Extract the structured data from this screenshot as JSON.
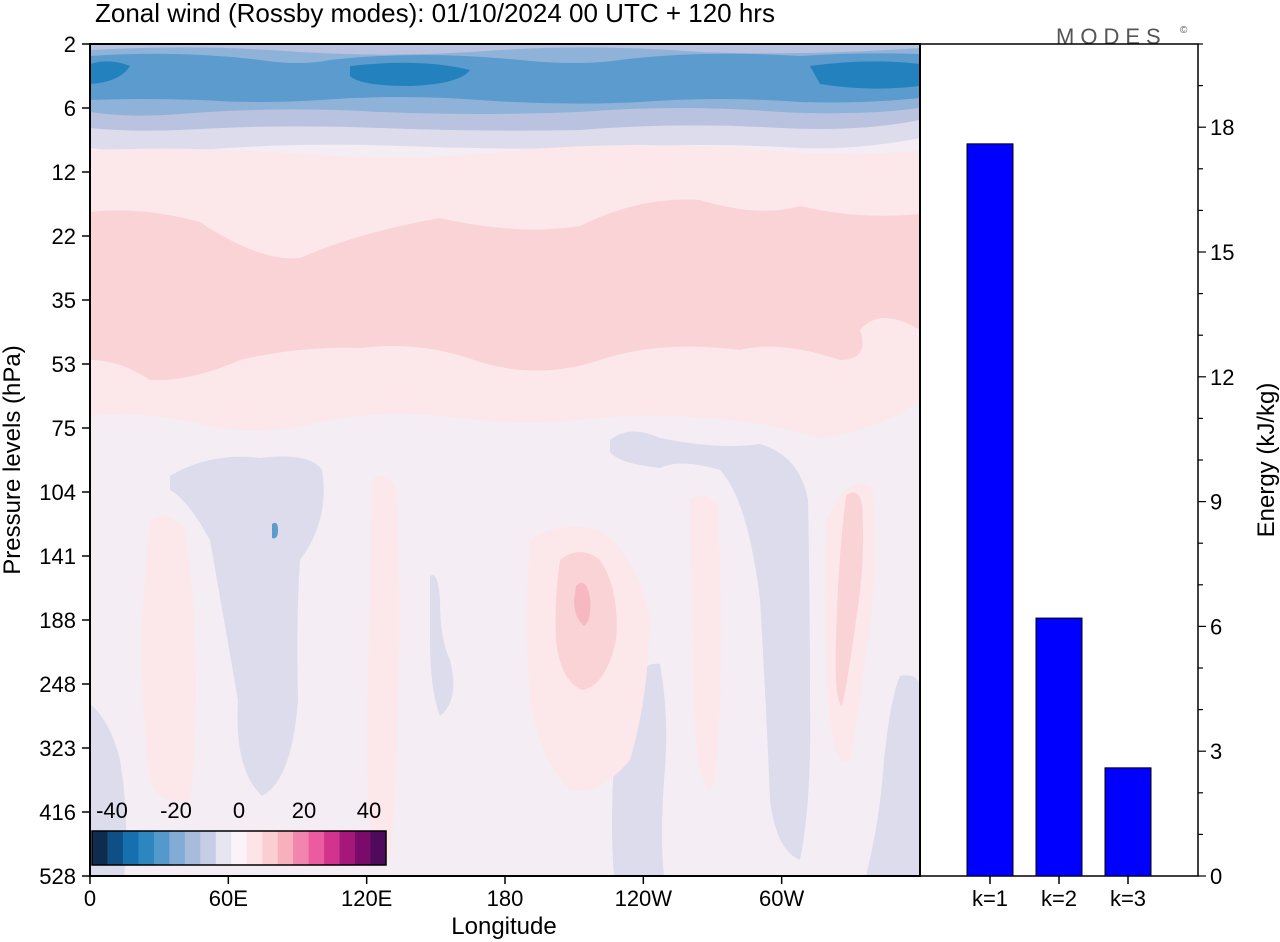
{
  "title": "Zonal wind (Rossby modes):  01/10/2024  00 UTC  + 120 hrs",
  "logo": "MODES",
  "logo_mark": "©",
  "contour_panel": {
    "xlabel": "Longitude",
    "ylabel": "Pressure levels (hPa)",
    "x_ticks": [
      "0",
      "60E",
      "120E",
      "180",
      "120W",
      "60W"
    ],
    "y_ticks": [
      "2",
      "6",
      "12",
      "22",
      "35",
      "53",
      "75",
      "104",
      "141",
      "188",
      "248",
      "323",
      "416",
      "528"
    ],
    "colorbar": {
      "tick_labels": [
        "-40",
        "-20",
        "0",
        "20",
        "40"
      ],
      "colors": [
        "#0d2c4e",
        "#0e4f86",
        "#1670b0",
        "#2d86c0",
        "#5598cc",
        "#82acd6",
        "#a7bcdd",
        "#c6cde6",
        "#e6e6f1",
        "#fbf3f7",
        "#fde4e6",
        "#fbcfd2",
        "#f8b0bd",
        "#f384ad",
        "#ec5aa0",
        "#d2348d",
        "#a5187a",
        "#7a0b6c",
        "#4f0a5c"
      ]
    },
    "field_colors": {
      "neg_strong": "#2382bd",
      "neg_mid": "#5c9bcd",
      "neg_light": "#8fb3d8",
      "neg_pale": "#b9c3df",
      "neg_faint": "#dcdcec",
      "background": "#f4edf4",
      "pos_faint": "#fce8ea",
      "pos_light": "#fad3d6",
      "pos_mid": "#f6b9c2",
      "pos_strong": "#f29eb2"
    }
  },
  "chart_data": {
    "type": "bar",
    "categories": [
      "k=1",
      "k=2",
      "k=3"
    ],
    "values": [
      17.6,
      6.2,
      2.6
    ],
    "ylabel": "Energy (kJ/kg)",
    "ylim": [
      0,
      20
    ],
    "y_ticks": [
      "0",
      "3",
      "6",
      "9",
      "12",
      "15",
      "18"
    ],
    "bar_color": "#0000ff"
  }
}
